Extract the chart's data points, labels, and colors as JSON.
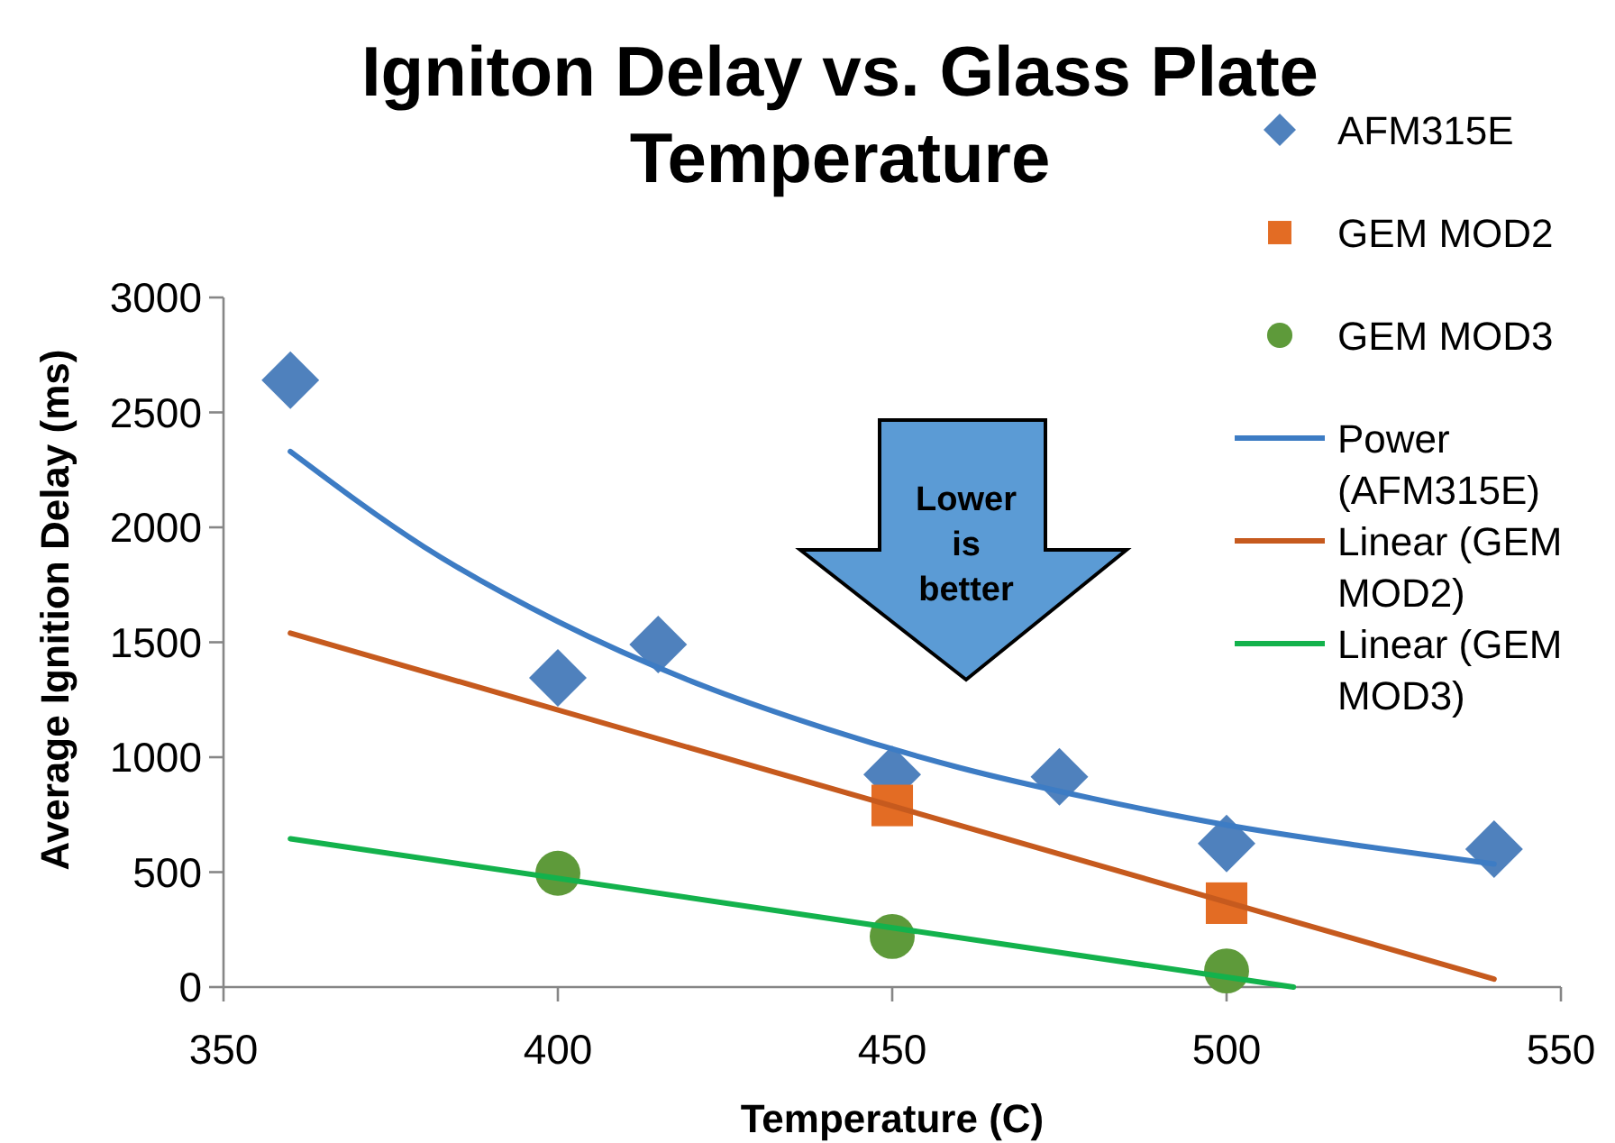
{
  "chart_data": {
    "type": "scatter",
    "title": "Igniton Delay vs. Glass Plate Temperature",
    "xlabel": "Temperature (C)",
    "ylabel": "Average Ignition Delay (ms)",
    "annotations": [
      "Lower is better"
    ],
    "xlim": [
      350,
      550
    ],
    "xticks": [
      350,
      400,
      450,
      500,
      550
    ],
    "ylim": [
      0,
      3000
    ],
    "yticks": [
      0,
      500,
      1000,
      1500,
      2000,
      2500,
      3000
    ],
    "legend": "top right",
    "series": [
      {
        "name": "AFM315E",
        "marker": "diamond",
        "color": "#4f81bd",
        "x": [
          360,
          400,
          415,
          450,
          475,
          500,
          540
        ],
        "values": [
          2640,
          1345,
          1490,
          925,
          915,
          625,
          600
        ]
      },
      {
        "name": "GEM MOD2",
        "marker": "square",
        "color": "#e36c24",
        "x": [
          450,
          500
        ],
        "values": [
          790,
          365
        ]
      },
      {
        "name": "GEM MOD3",
        "marker": "circle",
        "color": "#5e9a3a",
        "x": [
          400,
          450,
          500
        ],
        "values": [
          495,
          220,
          70
        ]
      },
      {
        "name": "Power (AFM315E)",
        "type": "line",
        "marker": "none",
        "line_style": "solid",
        "color": "#3d7cc4",
        "x": [
          360,
          380,
          400,
          420,
          440,
          460,
          480,
          500,
          520,
          540
        ],
        "values": [
          2330,
          1915,
          1590,
          1330,
          1125,
          955,
          820,
          705,
          615,
          535
        ]
      },
      {
        "name": "Linear (GEM MOD2)",
        "type": "line",
        "marker": "none",
        "line_style": "solid",
        "color": "#c65a1e",
        "x": [
          360,
          540
        ],
        "values": [
          1540,
          35
        ]
      },
      {
        "name": "Linear (GEM MOD3)",
        "type": "line",
        "marker": "none",
        "line_style": "solid",
        "color": "#13b24c",
        "x": [
          360,
          510
        ],
        "values": [
          645,
          0
        ]
      }
    ]
  }
}
